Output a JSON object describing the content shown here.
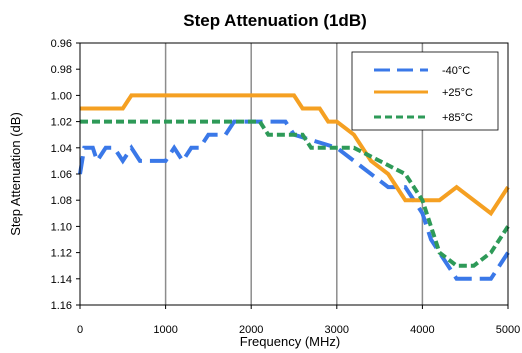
{
  "chart_data": {
    "type": "line",
    "title": "Step Attenuation (1dB)",
    "xlabel": "Frequency (MHz)",
    "ylabel": "Step Attenuation (dB)",
    "xlim": [
      0,
      5000
    ],
    "ylim": [
      1.16,
      0.96
    ],
    "y_axis_inverted": true,
    "xticks": [
      0,
      1000,
      2000,
      3000,
      4000,
      5000
    ],
    "xtick_labels": [
      "0",
      "1000",
      "2000",
      "3000",
      "4000",
      "5000"
    ],
    "yticks": [
      0.96,
      0.98,
      1.0,
      1.02,
      1.04,
      1.06,
      1.08,
      1.1,
      1.12,
      1.14,
      1.16
    ],
    "ytick_labels": [
      "0.96",
      "0.98",
      "1.00",
      "1.02",
      "1.04",
      "1.06",
      "1.08",
      "1.10",
      "1.12",
      "1.14",
      "1.16"
    ],
    "grid": "vertical major lines",
    "legend_position": "top-right",
    "series": [
      {
        "name": "-40°C",
        "color": "#3a78e8",
        "style": "dashed",
        "points": [
          [
            0,
            1.06
          ],
          [
            50,
            1.04
          ],
          [
            150,
            1.04
          ],
          [
            200,
            1.05
          ],
          [
            300,
            1.04
          ],
          [
            400,
            1.04
          ],
          [
            500,
            1.05
          ],
          [
            600,
            1.04
          ],
          [
            700,
            1.05
          ],
          [
            1000,
            1.05
          ],
          [
            1100,
            1.04
          ],
          [
            1200,
            1.05
          ],
          [
            1300,
            1.04
          ],
          [
            1400,
            1.04
          ],
          [
            1500,
            1.03
          ],
          [
            1700,
            1.03
          ],
          [
            1800,
            1.02
          ],
          [
            2400,
            1.02
          ],
          [
            2500,
            1.03
          ],
          [
            3000,
            1.04
          ],
          [
            3600,
            1.07
          ],
          [
            3800,
            1.07
          ],
          [
            4000,
            1.09
          ],
          [
            4100,
            1.11
          ],
          [
            4200,
            1.12
          ],
          [
            4400,
            1.14
          ],
          [
            4800,
            1.14
          ],
          [
            5000,
            1.12
          ]
        ]
      },
      {
        "name": "+25°C",
        "color": "#f5a022",
        "style": "solid",
        "points": [
          [
            0,
            1.01
          ],
          [
            500,
            1.01
          ],
          [
            600,
            1.0
          ],
          [
            2500,
            1.0
          ],
          [
            2600,
            1.01
          ],
          [
            2800,
            1.01
          ],
          [
            2900,
            1.02
          ],
          [
            3000,
            1.02
          ],
          [
            3200,
            1.03
          ],
          [
            3400,
            1.05
          ],
          [
            3600,
            1.06
          ],
          [
            3800,
            1.08
          ],
          [
            4000,
            1.08
          ],
          [
            4200,
            1.08
          ],
          [
            4400,
            1.07
          ],
          [
            4800,
            1.09
          ],
          [
            5000,
            1.07
          ]
        ]
      },
      {
        "name": "+85°C",
        "color": "#2e9a58",
        "style": "dashed",
        "points": [
          [
            0,
            1.02
          ],
          [
            2100,
            1.02
          ],
          [
            2200,
            1.03
          ],
          [
            2600,
            1.03
          ],
          [
            2700,
            1.04
          ],
          [
            3200,
            1.04
          ],
          [
            3500,
            1.05
          ],
          [
            3800,
            1.06
          ],
          [
            4000,
            1.08
          ],
          [
            4200,
            1.12
          ],
          [
            4400,
            1.13
          ],
          [
            4600,
            1.13
          ],
          [
            4800,
            1.12
          ],
          [
            5000,
            1.1
          ]
        ]
      }
    ]
  }
}
